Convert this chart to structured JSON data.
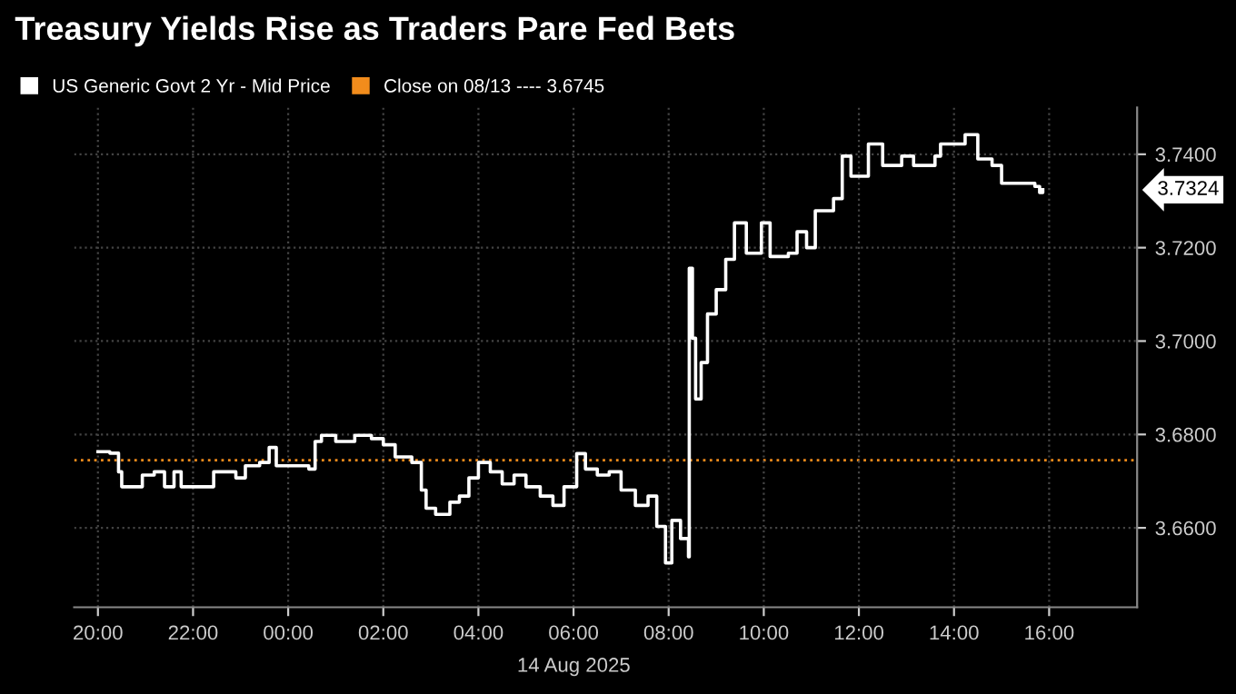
{
  "chart_data": {
    "type": "step",
    "title": "Treasury Yields Rise as Traders Pare Fed Bets",
    "x": [
      "2025-08-13T20:00",
      "2025-08-13T20:15",
      "2025-08-13T20:26",
      "2025-08-13T20:30",
      "2025-08-13T20:45",
      "2025-08-13T20:56",
      "2025-08-13T21:11",
      "2025-08-13T21:24",
      "2025-08-13T21:36",
      "2025-08-13T21:45",
      "2025-08-13T22:15",
      "2025-08-13T22:26",
      "2025-08-13T22:54",
      "2025-08-13T23:06",
      "2025-08-13T23:24",
      "2025-08-13T23:36",
      "2025-08-13T23:45",
      "2025-08-14T00:26",
      "2025-08-14T00:34",
      "2025-08-14T00:42",
      "2025-08-14T01:00",
      "2025-08-14T01:24",
      "2025-08-14T01:45",
      "2025-08-14T02:00",
      "2025-08-14T02:15",
      "2025-08-14T02:36",
      "2025-08-14T02:48",
      "2025-08-14T02:54",
      "2025-08-14T03:06",
      "2025-08-14T03:24",
      "2025-08-14T03:36",
      "2025-08-14T03:48",
      "2025-08-14T04:00",
      "2025-08-14T04:15",
      "2025-08-14T04:30",
      "2025-08-14T04:45",
      "2025-08-14T05:00",
      "2025-08-14T05:18",
      "2025-08-14T05:34",
      "2025-08-14T05:48",
      "2025-08-14T06:04",
      "2025-08-14T06:15",
      "2025-08-14T06:30",
      "2025-08-14T06:45",
      "2025-08-14T07:00",
      "2025-08-14T07:18",
      "2025-08-14T07:34",
      "2025-08-14T07:45",
      "2025-08-14T07:56",
      "2025-08-14T08:04",
      "2025-08-14T08:15",
      "2025-08-14T08:25",
      "2025-08-14T08:26",
      "2025-08-14T08:30",
      "2025-08-14T08:34",
      "2025-08-14T08:41",
      "2025-08-14T08:49",
      "2025-08-14T09:00",
      "2025-08-14T09:12",
      "2025-08-14T09:23",
      "2025-08-14T09:38",
      "2025-08-14T09:57",
      "2025-08-14T10:08",
      "2025-08-14T10:31",
      "2025-08-14T10:42",
      "2025-08-14T10:54",
      "2025-08-14T11:05",
      "2025-08-14T11:28",
      "2025-08-14T11:39",
      "2025-08-14T11:50",
      "2025-08-14T12:12",
      "2025-08-14T12:30",
      "2025-08-14T12:54",
      "2025-08-14T13:09",
      "2025-08-14T13:36",
      "2025-08-14T13:43",
      "2025-08-14T14:14",
      "2025-08-14T14:30",
      "2025-08-14T14:48",
      "2025-08-14T15:00",
      "2025-08-14T15:42",
      "2025-08-14T15:48",
      "2025-08-14T15:52"
    ],
    "series": [
      {
        "name": "US Generic Govt 2 Yr - Mid Price",
        "color": "#ffffff",
        "values": [
          3.6763,
          3.676,
          3.672,
          3.6688,
          3.6688,
          3.6713,
          3.672,
          3.6688,
          3.672,
          3.6688,
          3.6688,
          3.672,
          3.6707,
          3.6733,
          3.674,
          3.6772,
          3.6733,
          3.6726,
          3.6785,
          3.6798,
          3.6785,
          3.6798,
          3.6791,
          3.6778,
          3.6752,
          3.674,
          3.6681,
          3.6642,
          3.6629,
          3.6655,
          3.6668,
          3.6707,
          3.674,
          3.672,
          3.6694,
          3.6713,
          3.6688,
          3.6668,
          3.6648,
          3.6688,
          3.6759,
          3.6726,
          3.6713,
          3.672,
          3.6681,
          3.6648,
          3.6668,
          3.6603,
          3.6525,
          3.6616,
          3.6577,
          3.6538,
          3.7156,
          3.7006,
          3.6876,
          3.6954,
          3.7058,
          3.711,
          3.7175,
          3.7253,
          3.7188,
          3.7253,
          3.7181,
          3.7188,
          3.7234,
          3.72,
          3.7279,
          3.7305,
          3.7396,
          3.7353,
          3.7422,
          3.7376,
          3.7396,
          3.7376,
          3.7396,
          3.7422,
          3.7442,
          3.739,
          3.7376,
          3.7338,
          3.7331,
          3.7318,
          3.7324
        ]
      }
    ],
    "xlim": [
      "2025-08-13T19:30",
      "2025-08-14T17:51"
    ],
    "xticks": [
      {
        "value": "2025-08-13T20:00",
        "label": "20:00"
      },
      {
        "value": "2025-08-13T22:00",
        "label": "22:00"
      },
      {
        "value": "2025-08-14T00:00",
        "label": "00:00"
      },
      {
        "value": "2025-08-14T02:00",
        "label": "02:00"
      },
      {
        "value": "2025-08-14T04:00",
        "label": "04:00"
      },
      {
        "value": "2025-08-14T06:00",
        "label": "06:00"
      },
      {
        "value": "2025-08-14T08:00",
        "label": "08:00"
      },
      {
        "value": "2025-08-14T10:00",
        "label": "10:00"
      },
      {
        "value": "2025-08-14T12:00",
        "label": "12:00"
      },
      {
        "value": "2025-08-14T14:00",
        "label": "14:00"
      },
      {
        "value": "2025-08-14T16:00",
        "label": "16:00"
      }
    ],
    "ylim": [
      3.643,
      3.75
    ],
    "yticks": [
      {
        "value": 3.66,
        "label": "3.6600"
      },
      {
        "value": 3.68,
        "label": "3.6800"
      },
      {
        "value": 3.7,
        "label": "3.7000"
      },
      {
        "value": 3.72,
        "label": "3.7200"
      },
      {
        "value": 3.74,
        "label": "3.7400"
      }
    ],
    "ref_lines": [
      {
        "axis": "y",
        "value": 3.6745,
        "label": "Close on 08/13 ---- 3.6745",
        "color": "#f28c1c",
        "line_style": "dotted"
      }
    ],
    "annotations": [
      "14 Aug 2025",
      "3.7324"
    ],
    "grid": true,
    "legend": "top left"
  }
}
